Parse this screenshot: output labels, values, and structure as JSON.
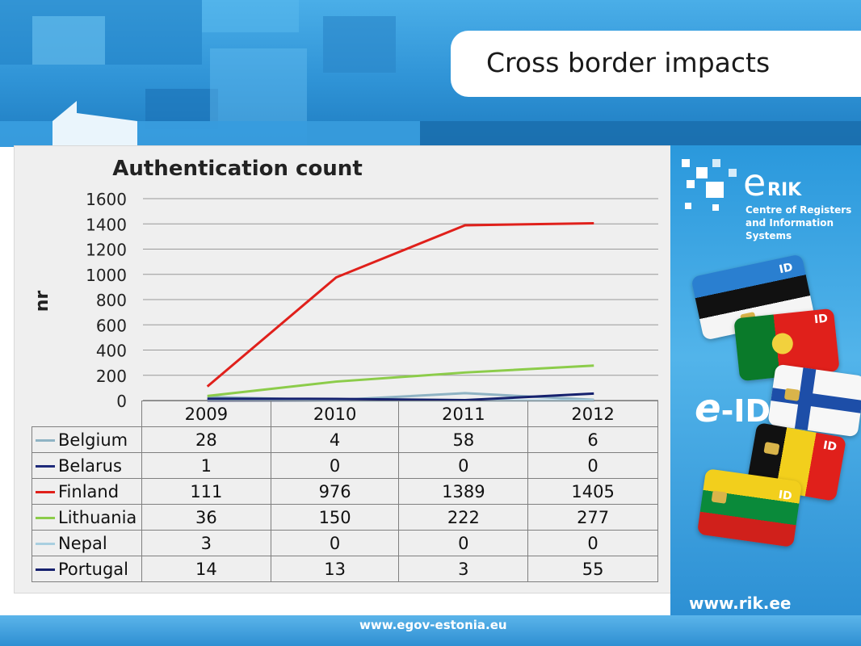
{
  "slide": {
    "title": "Cross border impacts",
    "footer_url": "www.egov-estonia.eu"
  },
  "sidebar": {
    "logo_e": "e",
    "logo_rik": "RIK",
    "org_name": "Centre of Registers and Information Systems",
    "eid_label": "-ID",
    "eid_e": "e",
    "card_label": "ID",
    "url": "www.rik.ee"
  },
  "colors": {
    "Belgium": "#8fb3c4",
    "Belarus": "#1f2a7a",
    "Finland": "#e0201b",
    "Lithuania": "#8ccc4a",
    "Nepal": "#a9cfe0",
    "Portugal": "#16216e"
  },
  "chart_data": {
    "type": "line",
    "title": "Authentication count",
    "xlabel": "",
    "ylabel": "nr",
    "ylim": [
      0,
      1600
    ],
    "yticks": [
      "0",
      "200",
      "400",
      "600",
      "800",
      "1000",
      "1200",
      "1400",
      "1600"
    ],
    "categories": [
      "2009",
      "2010",
      "2011",
      "2012"
    ],
    "grid": true,
    "legend": "data-table",
    "series": [
      {
        "name": "Belgium",
        "values": [
          28,
          4,
          58,
          6
        ]
      },
      {
        "name": "Belarus",
        "values": [
          1,
          0,
          0,
          0
        ]
      },
      {
        "name": "Finland",
        "values": [
          111,
          976,
          1389,
          1405
        ]
      },
      {
        "name": "Lithuania",
        "values": [
          36,
          150,
          222,
          277
        ]
      },
      {
        "name": "Nepal",
        "values": [
          3,
          0,
          0,
          0
        ]
      },
      {
        "name": "Portugal",
        "values": [
          14,
          13,
          3,
          55
        ]
      }
    ]
  }
}
